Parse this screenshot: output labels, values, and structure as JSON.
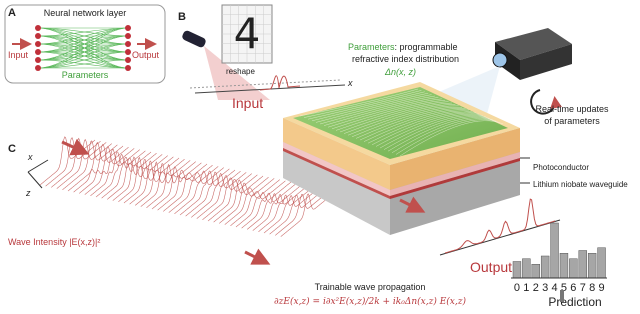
{
  "panel_a": {
    "label": "A",
    "title": "Neural network layer",
    "input": "Input",
    "output": "Output",
    "parameters": "Parameters"
  },
  "panel_b": {
    "label": "B",
    "digit": "4",
    "reshape": "reshape",
    "input": "Input",
    "axis": "x",
    "parameters_name": "Parameters",
    "parameters_text": ": programmable",
    "parameters_line2": "refractive index distribution",
    "delta_n": "Δn(x, z)",
    "updates_line1": "Real-time updates",
    "updates_line2": "of parameters",
    "photoconductor": "Photoconductor",
    "waveguide": "Lithium niobate waveguide",
    "output": "Output"
  },
  "panel_c": {
    "label": "C",
    "axis_x": "x",
    "axis_z": "z",
    "intensity": "Wave Intensity |E(x,z)|²",
    "propagation_title": "Trainable wave propagation",
    "equation": "∂zE(x,z) = i∂x²E(x,z)/2k + ik₀Δn(x,z) E(x,z)"
  },
  "prediction": {
    "categories": [
      "0",
      "1",
      "2",
      "3",
      "4",
      "5",
      "6",
      "7",
      "8",
      "9"
    ],
    "values": [
      0.3,
      0.35,
      0.25,
      0.4,
      1.0,
      0.45,
      0.35,
      0.5,
      0.45,
      0.55
    ],
    "label": "Prediction"
  }
}
